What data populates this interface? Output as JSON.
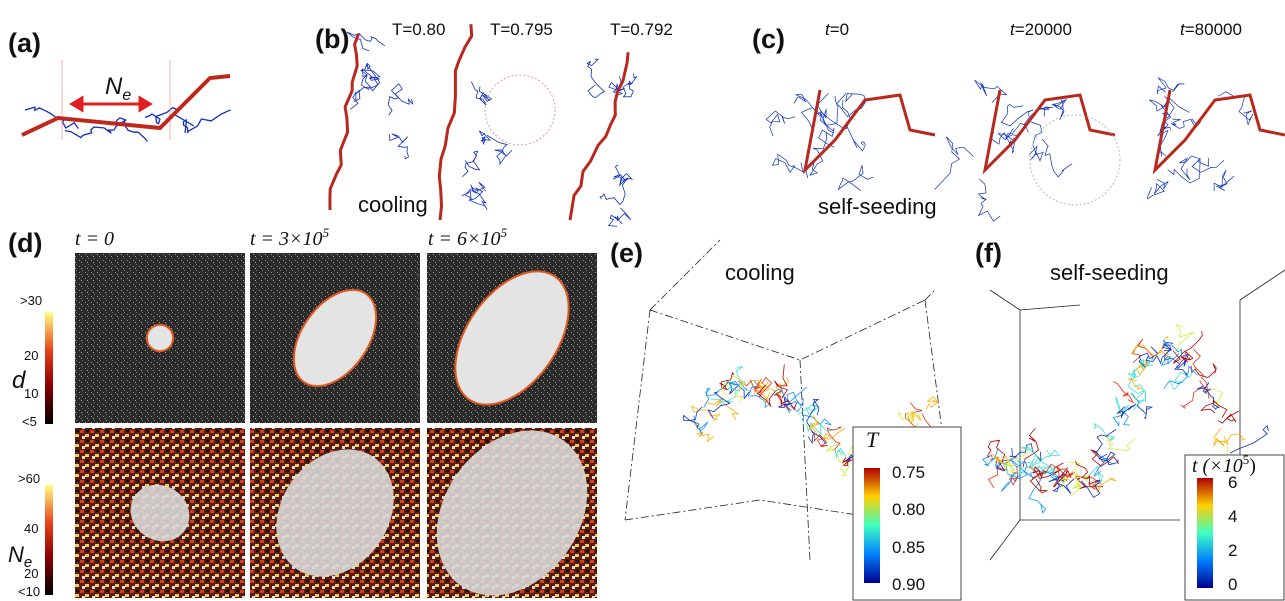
{
  "panel_a": {
    "label": "(a)",
    "annotation": {
      "symbol": "N",
      "subscript": "e"
    }
  },
  "panel_b": {
    "label": "(b)",
    "temperatures": [
      "T=0.80",
      "T=0.795",
      "T=0.792"
    ],
    "caption": "cooling"
  },
  "panel_c": {
    "label": "(c)",
    "times": [
      {
        "symbol": "t",
        "text": "=0"
      },
      {
        "symbol": "t",
        "text": "=20000"
      },
      {
        "symbol": "t",
        "text": "=80000"
      }
    ],
    "caption": "self-seeding"
  },
  "panel_d": {
    "label": "(d)",
    "columns": [
      {
        "text": "t = 0"
      },
      {
        "text": "t = 3×10",
        "sup": "5"
      },
      {
        "text": "t = 6×10",
        "sup": "5"
      }
    ],
    "colorbar_d": {
      "label": "d",
      "ticks": [
        ">30",
        "20",
        "10",
        "<5"
      ]
    },
    "colorbar_ne": {
      "label": {
        "symbol": "N",
        "subscript": "e"
      },
      "ticks": [
        ">60",
        "40",
        "20",
        "<10"
      ]
    }
  },
  "panel_e": {
    "label": "(e)",
    "title": "cooling",
    "colorbar": {
      "label": "T",
      "ticks": [
        "0.75",
        "0.80",
        "0.85",
        "0.90"
      ]
    }
  },
  "panel_f": {
    "label": "(f)",
    "title": "self-seeding",
    "colorbar": {
      "label": {
        "text": "t (×10",
        "sup": "5",
        "end": ")"
      },
      "ticks": [
        "6",
        "4",
        "2",
        "0"
      ]
    }
  }
}
